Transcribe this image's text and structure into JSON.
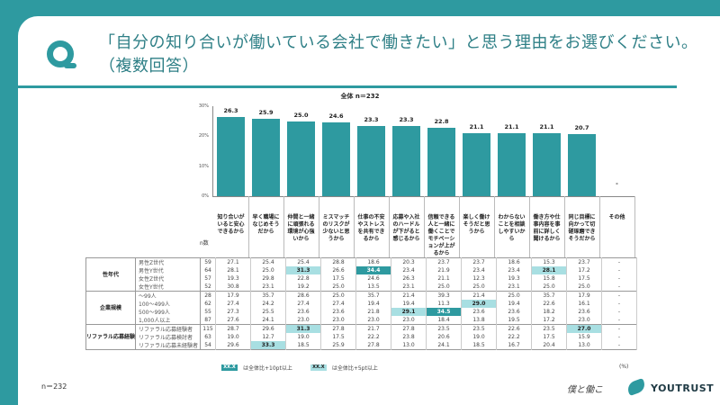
{
  "header": {
    "title_line1": "「自分の知り合いが働いている会社で働きたい」と思う理由をお選びください。",
    "title_line2": "（複数回答）"
  },
  "chart_data": {
    "type": "bar",
    "title": "全体 n＝232",
    "ylim": [
      0,
      30
    ],
    "yticks": [
      "0%",
      "10%",
      "20%",
      "30%"
    ],
    "categories": [
      "知り合いがいると安心できるから",
      "早く職場になじめそうだから",
      "仲間と一緒に頑張れる環境が心強いから",
      "ミスマッチのリスクが少ないと思うから",
      "仕事の不安やストレスを共有できるから",
      "応募や入社のハードルが下がると感じるから",
      "信頼できる人と一緒に働くことでモチベーションが上がるから",
      "楽しく働けそうだと思うから",
      "わからないことを相談しやすいから",
      "働き方や仕事内容を事前に詳しく聞けるから",
      "同じ目標に向かって切磋琢磨できそうだから",
      "その他"
    ],
    "values": [
      26.3,
      25.9,
      25.0,
      24.6,
      23.3,
      23.3,
      22.8,
      21.1,
      21.1,
      21.1,
      20.7,
      null
    ],
    "value_labels": [
      "26.3",
      "25.9",
      "25.0",
      "24.6",
      "23.3",
      "23.3",
      "22.8",
      "21.1",
      "21.1",
      "21.1",
      "20.7",
      "-"
    ],
    "color": "#2e9aa0"
  },
  "table": {
    "n_header": "n数",
    "groups": [
      {
        "label": "性年代",
        "rows": [
          {
            "label": "男性Z世代",
            "n": "59",
            "v": [
              "27.1",
              "25.4",
              "25.4",
              "28.8",
              "18.6",
              "20.3",
              "23.7",
              "23.7",
              "18.6",
              "15.3",
              "23.7",
              "-"
            ],
            "h": [
              0,
              0,
              0,
              0,
              0,
              0,
              0,
              0,
              0,
              0,
              0,
              0
            ]
          },
          {
            "label": "男性Y世代",
            "n": "64",
            "v": [
              "28.1",
              "25.0",
              "31.3",
              "26.6",
              "34.4",
              "23.4",
              "21.9",
              "23.4",
              "23.4",
              "28.1",
              "17.2",
              "-"
            ],
            "h": [
              0,
              0,
              2,
              0,
              1,
              0,
              0,
              0,
              0,
              2,
              0,
              0
            ]
          },
          {
            "label": "女性Z世代",
            "n": "57",
            "v": [
              "19.3",
              "29.8",
              "22.8",
              "17.5",
              "24.6",
              "26.3",
              "21.1",
              "12.3",
              "19.3",
              "15.8",
              "17.5",
              "-"
            ],
            "h": [
              0,
              0,
              0,
              0,
              0,
              0,
              0,
              0,
              0,
              0,
              0,
              0
            ]
          },
          {
            "label": "女性Y世代",
            "n": "52",
            "v": [
              "30.8",
              "23.1",
              "19.2",
              "25.0",
              "13.5",
              "23.1",
              "25.0",
              "25.0",
              "23.1",
              "25.0",
              "25.0",
              "-"
            ],
            "h": [
              0,
              0,
              0,
              0,
              0,
              0,
              0,
              0,
              0,
              0,
              0,
              0
            ]
          }
        ]
      },
      {
        "label": "企業規模",
        "rows": [
          {
            "label": "～99人",
            "n": "28",
            "v": [
              "17.9",
              "35.7",
              "28.6",
              "25.0",
              "35.7",
              "21.4",
              "39.3",
              "21.4",
              "25.0",
              "35.7",
              "17.9",
              "-"
            ],
            "h": [
              0,
              0,
              0,
              0,
              0,
              0,
              0,
              0,
              0,
              0,
              0,
              0
            ]
          },
          {
            "label": "100～499人",
            "n": "62",
            "v": [
              "27.4",
              "24.2",
              "27.4",
              "27.4",
              "19.4",
              "19.4",
              "11.3",
              "29.0",
              "19.4",
              "22.6",
              "16.1",
              "-"
            ],
            "h": [
              0,
              0,
              0,
              0,
              0,
              0,
              0,
              2,
              0,
              0,
              0,
              0
            ]
          },
          {
            "label": "500～999人",
            "n": "55",
            "v": [
              "27.3",
              "25.5",
              "23.6",
              "23.6",
              "21.8",
              "29.1",
              "34.5",
              "23.6",
              "23.6",
              "18.2",
              "23.6",
              "-"
            ],
            "h": [
              0,
              0,
              0,
              0,
              0,
              2,
              1,
              0,
              0,
              0,
              0,
              0
            ]
          },
          {
            "label": "1,000人以上",
            "n": "87",
            "v": [
              "27.6",
              "24.1",
              "23.0",
              "23.0",
              "23.0",
              "23.0",
              "18.4",
              "13.8",
              "19.5",
              "17.2",
              "23.0",
              "-"
            ],
            "h": [
              0,
              0,
              0,
              0,
              0,
              0,
              0,
              0,
              0,
              0,
              0,
              0
            ]
          }
        ]
      },
      {
        "label": "リファラル応募経験",
        "rows": [
          {
            "label": "リファラル応募経験者",
            "n": "115",
            "v": [
              "28.7",
              "29.6",
              "31.3",
              "27.8",
              "21.7",
              "27.8",
              "23.5",
              "23.5",
              "22.6",
              "23.5",
              "27.0",
              "-"
            ],
            "h": [
              0,
              0,
              2,
              0,
              0,
              0,
              0,
              0,
              0,
              0,
              2,
              0
            ]
          },
          {
            "label": "リファラル応募検討者",
            "n": "63",
            "v": [
              "19.0",
              "12.7",
              "19.0",
              "17.5",
              "22.2",
              "23.8",
              "20.6",
              "19.0",
              "22.2",
              "17.5",
              "15.9",
              "-"
            ],
            "h": [
              0,
              0,
              0,
              0,
              0,
              0,
              0,
              0,
              0,
              0,
              0,
              0
            ]
          },
          {
            "label": "リファラル応募未経験者",
            "n": "54",
            "v": [
              "29.6",
              "33.3",
              "18.5",
              "25.9",
              "27.8",
              "13.0",
              "24.1",
              "18.5",
              "16.7",
              "20.4",
              "13.0",
              "-"
            ],
            "h": [
              0,
              2,
              0,
              0,
              0,
              0,
              0,
              0,
              0,
              0,
              0,
              0
            ]
          }
        ]
      }
    ]
  },
  "legend": {
    "swatch": "XX.X",
    "item1": "は全体比+10pt以上",
    "item2": "は全体比+5pt以上",
    "color1": "#2e9aa0",
    "color2": "#a8dfe2"
  },
  "unit": "(%)",
  "footer": {
    "n": "n＝232",
    "signature": "僕と働こ",
    "brand": "YOUTRUST"
  }
}
